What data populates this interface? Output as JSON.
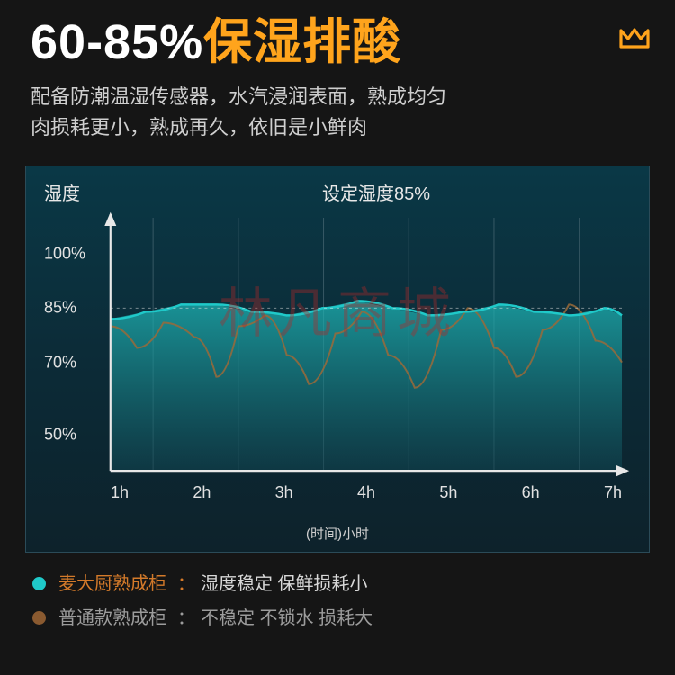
{
  "header": {
    "percent_text": "60-85%",
    "cn_text": "保湿排酸",
    "logo_color": "#ffa41c"
  },
  "subtitle": {
    "line1": "配备防潮温湿传感器，水汽浸润表面，熟成均匀",
    "line2": "肉损耗更小，熟成再久，依旧是小鲜肉"
  },
  "chart": {
    "type": "area-line",
    "y_label": "湿度",
    "title_label": "设定湿度85%",
    "x_axis_title": "(时间)小时",
    "background_gradient_top": "#0a3846",
    "background_gradient_bottom": "#0d222b",
    "border_color": "#2b4b58",
    "grid_color": "#5c7883",
    "axis_color": "#e8e8e8",
    "target_line_pct": 85,
    "ylim": [
      40,
      110
    ],
    "y_ticks": [
      {
        "label": "100%",
        "value": 100
      },
      {
        "label": "85%",
        "value": 85
      },
      {
        "label": "70%",
        "value": 70
      },
      {
        "label": "50%",
        "value": 50
      }
    ],
    "x_ticks": [
      "1h",
      "2h",
      "3h",
      "4h",
      "5h",
      "6h",
      "7h"
    ],
    "x_grid_between": true,
    "series_primary": {
      "name": "麦大厨熟成柜",
      "desc": "湿度稳定 保鲜损耗小",
      "color": "#1fc9c9",
      "fill_top": "rgba(31,186,186,0.72)",
      "fill_bottom": "rgba(16,70,82,0.55)",
      "line_width": 2.5,
      "points": [
        [
          0,
          82
        ],
        [
          40,
          84
        ],
        [
          80,
          86
        ],
        [
          120,
          86
        ],
        [
          160,
          84
        ],
        [
          200,
          83
        ],
        [
          240,
          85
        ],
        [
          280,
          87
        ],
        [
          320,
          85
        ],
        [
          360,
          83
        ],
        [
          400,
          84
        ],
        [
          440,
          86
        ],
        [
          480,
          84
        ],
        [
          520,
          83
        ],
        [
          560,
          85
        ],
        [
          580,
          83
        ]
      ]
    },
    "series_secondary": {
      "name": "普通款熟成柜",
      "desc": "不稳定 不锁水 损耗大",
      "color": "#9a6a3a",
      "line_width": 2,
      "dash": "none",
      "points": [
        [
          0,
          80
        ],
        [
          30,
          74
        ],
        [
          60,
          81
        ],
        [
          95,
          77
        ],
        [
          120,
          66
        ],
        [
          145,
          80
        ],
        [
          175,
          83
        ],
        [
          200,
          72
        ],
        [
          225,
          64
        ],
        [
          255,
          78
        ],
        [
          285,
          84
        ],
        [
          315,
          72
        ],
        [
          345,
          63
        ],
        [
          375,
          79
        ],
        [
          405,
          85
        ],
        [
          435,
          74
        ],
        [
          460,
          66
        ],
        [
          490,
          79
        ],
        [
          520,
          86
        ],
        [
          550,
          76
        ],
        [
          580,
          70
        ]
      ]
    }
  },
  "legend": {
    "row1": {
      "dot": "#1fc9c9",
      "name": "麦大厨熟成柜",
      "desc": "湿度稳定 保鲜损耗小",
      "name_color": "#d47a2a",
      "desc_color": "#d8d8d8"
    },
    "row2": {
      "dot": "#8a5a30",
      "name": "普通款熟成柜",
      "desc": "不稳定 不锁水 损耗大",
      "name_color": "#9c9c9c",
      "desc_color": "#9c9c9c"
    }
  },
  "watermark": "林凡商城"
}
